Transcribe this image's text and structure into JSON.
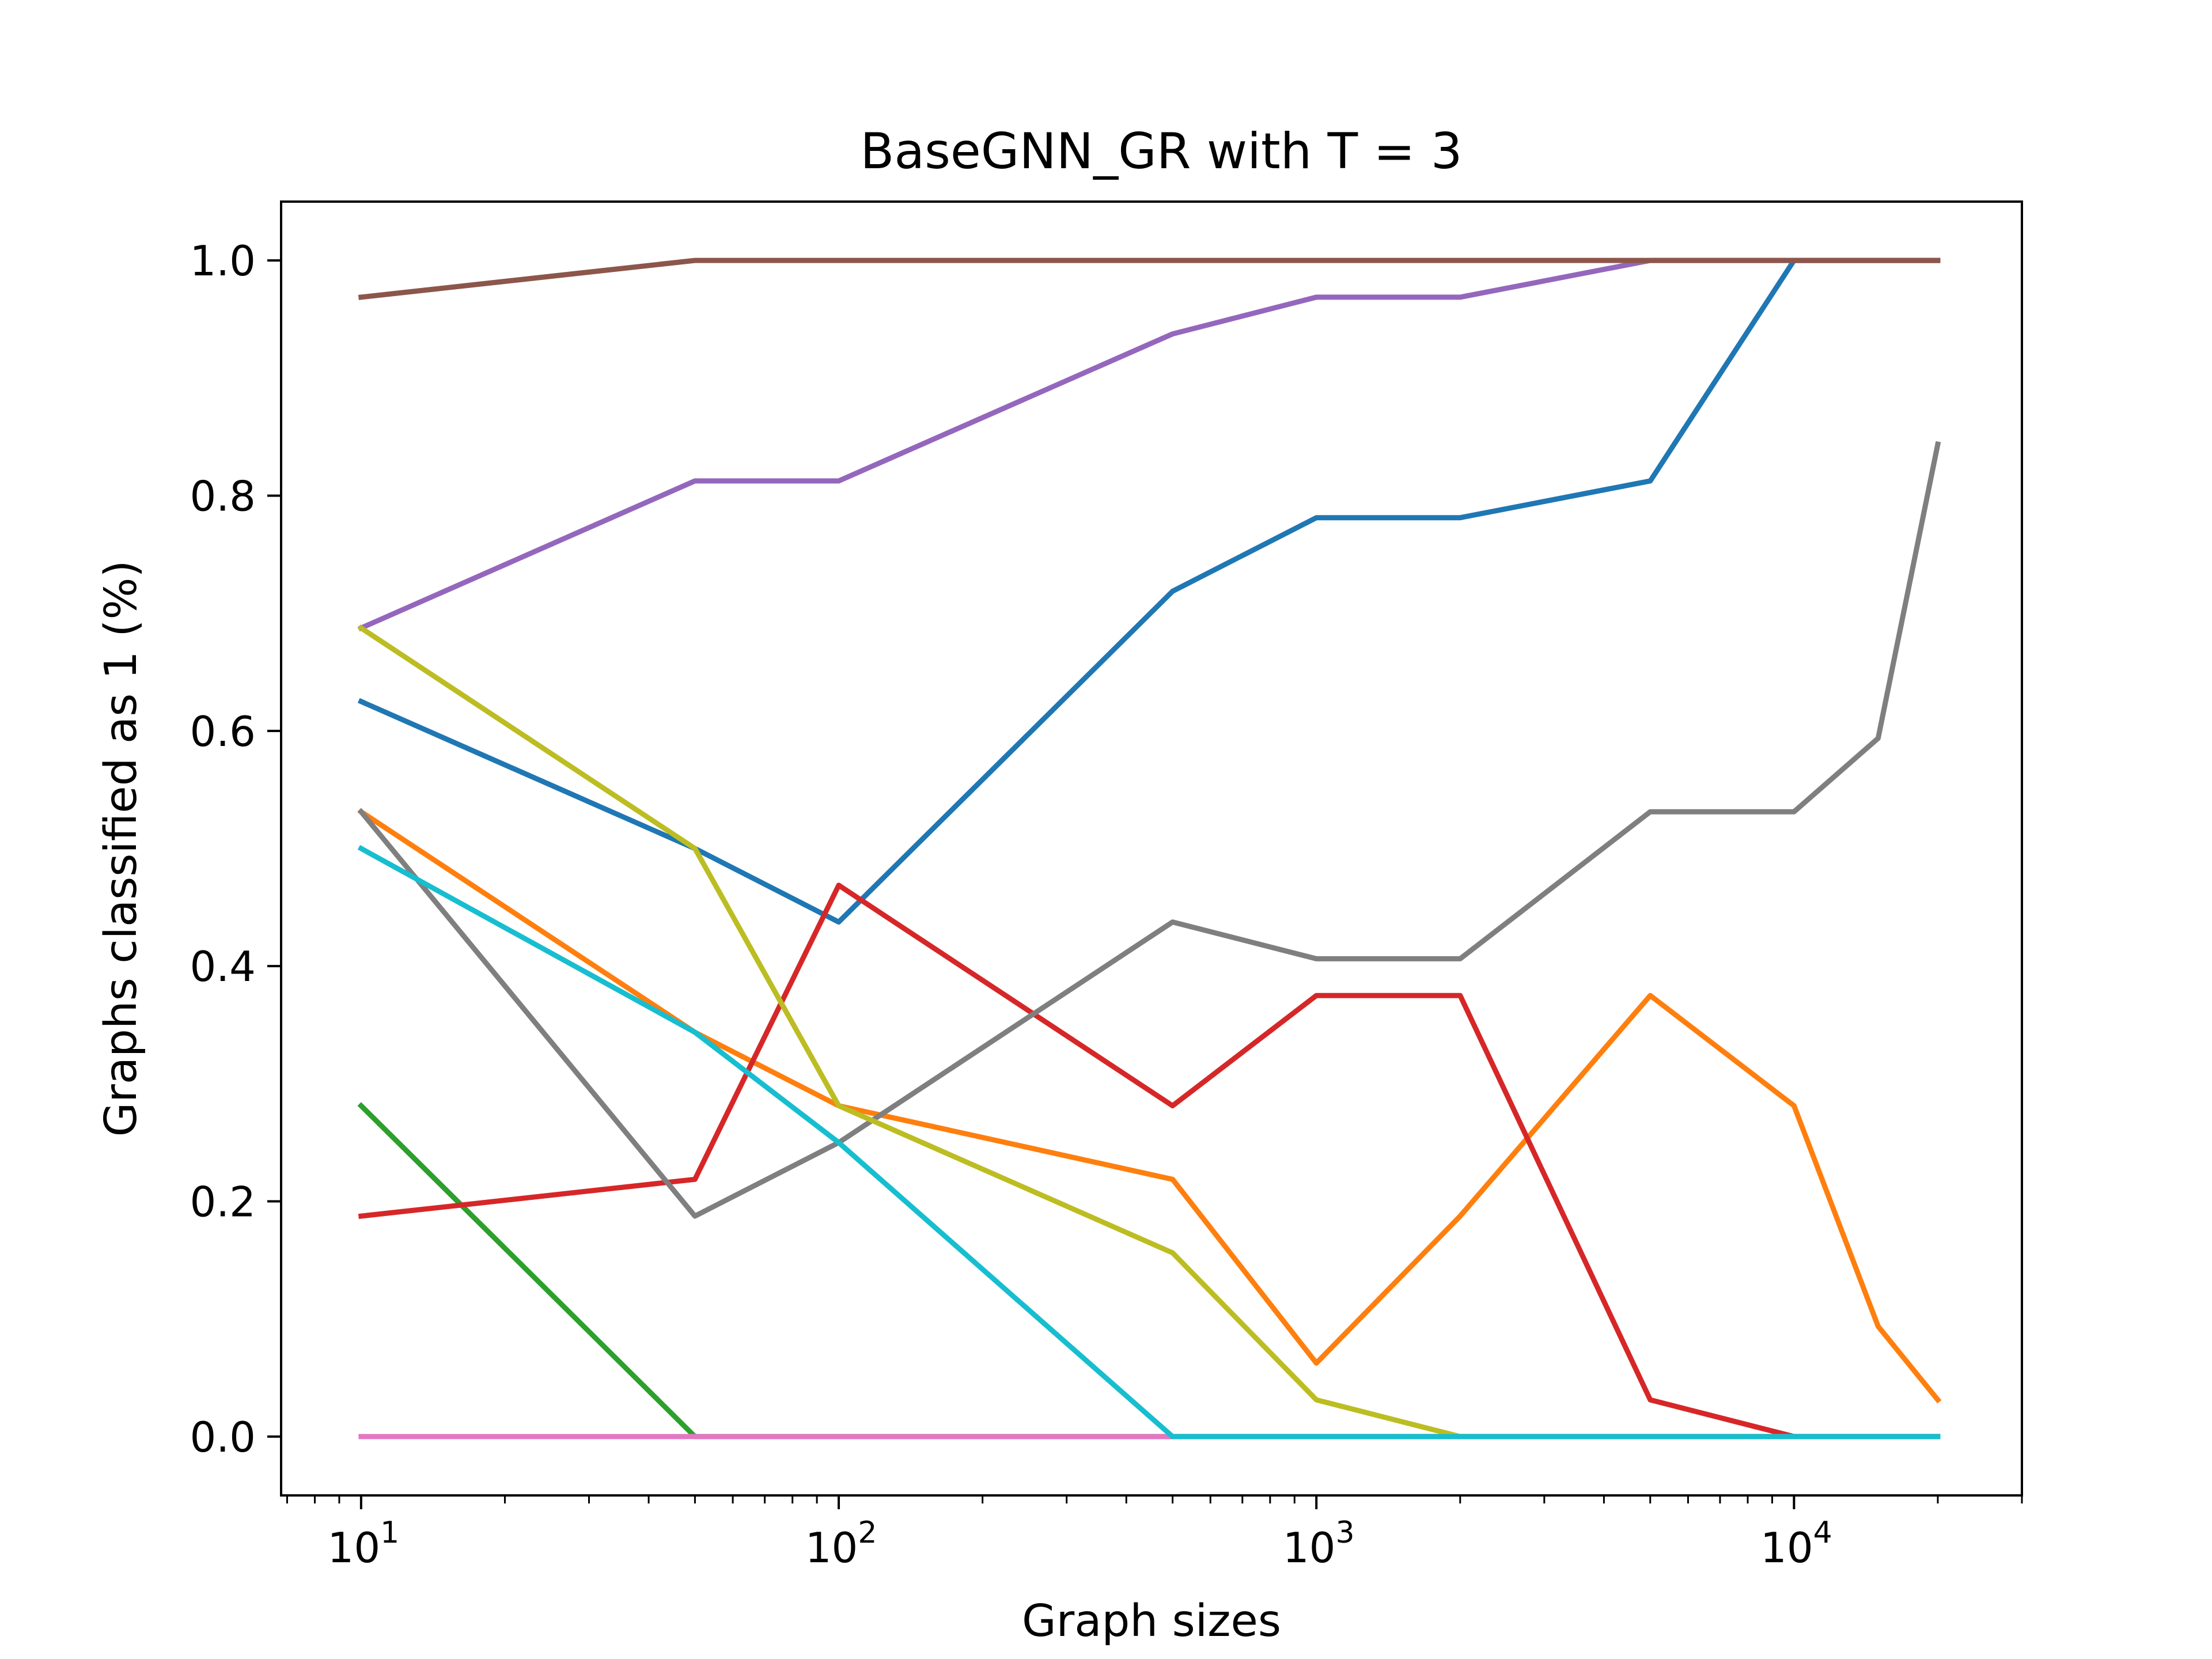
{
  "chart_data": {
    "type": "line",
    "title": "BaseGNN_GR with T = 3",
    "xlabel": "Graph sizes",
    "ylabel": "Graphs classified as 1 (%)",
    "x_scale": "log",
    "xlim": [
      6.8,
      30000
    ],
    "ylim": [
      -0.05,
      1.05
    ],
    "grid": false,
    "x_ticks": [
      {
        "value": 10,
        "base": "10",
        "exp": "1"
      },
      {
        "value": 100,
        "base": "10",
        "exp": "2"
      },
      {
        "value": 1000,
        "base": "10",
        "exp": "3"
      },
      {
        "value": 10000,
        "base": "10",
        "exp": "4"
      }
    ],
    "y_ticks": [
      {
        "value": 0.0,
        "label": "0.0"
      },
      {
        "value": 0.2,
        "label": "0.2"
      },
      {
        "value": 0.4,
        "label": "0.4"
      },
      {
        "value": 0.6,
        "label": "0.6"
      },
      {
        "value": 0.8,
        "label": "0.8"
      },
      {
        "value": 1.0,
        "label": "1.0"
      }
    ],
    "series": [
      {
        "color": "#1f77b4",
        "x": [
          10,
          50,
          100,
          500,
          1000,
          2000,
          5000,
          10000,
          20000
        ],
        "y": [
          0.625,
          0.5,
          0.4375,
          0.71875,
          0.78125,
          0.78125,
          0.8125,
          1.0,
          1.0
        ]
      },
      {
        "color": "#ff7f0e",
        "x": [
          10,
          50,
          100,
          500,
          1000,
          2000,
          5000,
          10000,
          15000,
          20000
        ],
        "y": [
          0.53125,
          0.34375,
          0.28125,
          0.21875,
          0.0625,
          0.1875,
          0.375,
          0.28125,
          0.09375,
          0.03125
        ]
      },
      {
        "color": "#2ca02c",
        "x": [
          10,
          50,
          100,
          500,
          1000,
          2000,
          5000,
          10000,
          20000
        ],
        "y": [
          0.28125,
          0.0,
          0.0,
          0.0,
          0.0,
          0.0,
          0.0,
          0.0,
          0.0
        ]
      },
      {
        "color": "#d62728",
        "x": [
          10,
          50,
          100,
          500,
          1000,
          2000,
          5000,
          10000,
          20000
        ],
        "y": [
          0.1875,
          0.21875,
          0.46875,
          0.28125,
          0.375,
          0.375,
          0.03125,
          0.0,
          0.0
        ]
      },
      {
        "color": "#9467bd",
        "x": [
          10,
          50,
          100,
          500,
          1000,
          2000,
          5000,
          10000,
          20000
        ],
        "y": [
          0.6875,
          0.8125,
          0.8125,
          0.9375,
          0.96875,
          0.96875,
          1.0,
          1.0,
          1.0
        ]
      },
      {
        "color": "#8c564b",
        "x": [
          10,
          50,
          100,
          500,
          1000,
          2000,
          5000,
          10000,
          20000
        ],
        "y": [
          0.96875,
          1.0,
          1.0,
          1.0,
          1.0,
          1.0,
          1.0,
          1.0,
          1.0
        ]
      },
      {
        "color": "#e377c2",
        "x": [
          10,
          50,
          100,
          500,
          1000,
          2000,
          5000,
          10000,
          20000
        ],
        "y": [
          0.0,
          0.0,
          0.0,
          0.0,
          0.0,
          0.0,
          0.0,
          0.0,
          0.0
        ]
      },
      {
        "color": "#7f7f7f",
        "x": [
          10,
          50,
          100,
          500,
          1000,
          2000,
          5000,
          10000,
          15000,
          20000
        ],
        "y": [
          0.53125,
          0.1875,
          0.25,
          0.4375,
          0.40625,
          0.40625,
          0.53125,
          0.53125,
          0.59375,
          0.84375
        ]
      },
      {
        "color": "#bcbd22",
        "x": [
          10,
          50,
          100,
          500,
          1000,
          2000,
          5000,
          10000,
          20000
        ],
        "y": [
          0.6875,
          0.5,
          0.28125,
          0.15625,
          0.03125,
          0.0,
          0.0,
          0.0,
          0.0
        ]
      },
      {
        "color": "#17becf",
        "x": [
          10,
          50,
          100,
          500,
          1000,
          2000,
          5000,
          10000,
          20000
        ],
        "y": [
          0.5,
          0.34375,
          0.25,
          0.0,
          0.0,
          0.0,
          0.0,
          0.0,
          0.0
        ]
      }
    ]
  }
}
